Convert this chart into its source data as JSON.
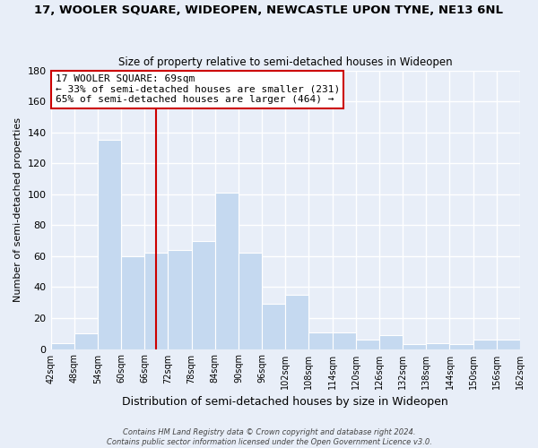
{
  "title": "17, WOOLER SQUARE, WIDEOPEN, NEWCASTLE UPON TYNE, NE13 6NL",
  "subtitle": "Size of property relative to semi-detached houses in Wideopen",
  "xlabel": "Distribution of semi-detached houses by size in Wideopen",
  "ylabel": "Number of semi-detached properties",
  "bin_edges": [
    42,
    48,
    54,
    60,
    66,
    72,
    78,
    84,
    90,
    96,
    102,
    108,
    114,
    120,
    126,
    132,
    138,
    144,
    150,
    156,
    162
  ],
  "counts": [
    4,
    10,
    135,
    60,
    62,
    64,
    70,
    101,
    62,
    29,
    35,
    11,
    11,
    6,
    9,
    3,
    4,
    3,
    6,
    6
  ],
  "bar_color": "#c5d9f0",
  "bar_edge_color": "#ffffff",
  "property_size": 69,
  "property_line_color": "#cc0000",
  "annotation_title": "17 WOOLER SQUARE: 69sqm",
  "annotation_line1": "← 33% of semi-detached houses are smaller (231)",
  "annotation_line2": "65% of semi-detached houses are larger (464) →",
  "annotation_box_facecolor": "#ffffff",
  "annotation_box_edgecolor": "#cc0000",
  "ylim": [
    0,
    180
  ],
  "yticks": [
    0,
    20,
    40,
    60,
    80,
    100,
    120,
    140,
    160,
    180
  ],
  "footer1": "Contains HM Land Registry data © Crown copyright and database right 2024.",
  "footer2": "Contains public sector information licensed under the Open Government Licence v3.0.",
  "background_color": "#e8eef8",
  "plot_bg_color": "#e8eef8",
  "grid_color": "#ffffff",
  "title_fontsize": 9.5,
  "subtitle_fontsize": 8.5,
  "ylabel_fontsize": 8,
  "xlabel_fontsize": 9
}
